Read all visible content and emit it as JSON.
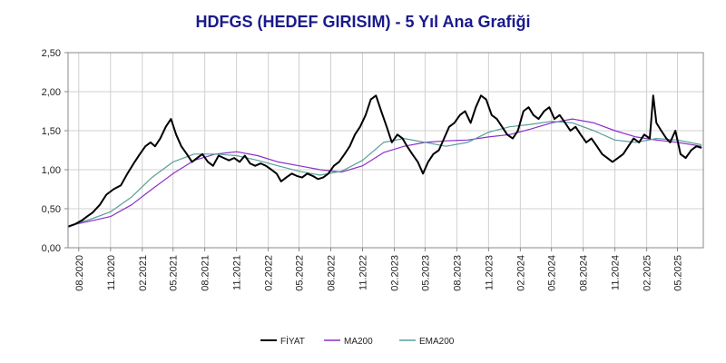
{
  "chart_data": {
    "type": "line",
    "title": "HDFGS (HEDEF GIRISIM) - 5 Yıl Ana Grafiği",
    "title_color": "#1a1a8c",
    "xlabel": "",
    "ylabel": "",
    "ylim": [
      0,
      2.5
    ],
    "xlim": [
      "2020-07-01",
      "2025-07-15"
    ],
    "grid": true,
    "legend_position": "bottom-center",
    "y_ticks": [
      "0,00",
      "0,50",
      "1,00",
      "1,50",
      "2,00",
      "2,50"
    ],
    "x_ticks": [
      "08.2020",
      "11.2020",
      "02.2021",
      "05.2021",
      "08.2021",
      "11.2021",
      "02.2022",
      "05.2022",
      "08.2022",
      "11.2022",
      "02.2023",
      "05.2023",
      "08.2023",
      "11.2023",
      "02.2024",
      "05.2024",
      "08.2024",
      "11.2024",
      "02.2025",
      "05.2025"
    ],
    "series": [
      {
        "name": "FİYAT",
        "color": "#000000",
        "points": [
          [
            "2020-07-01",
            0.27
          ],
          [
            "2020-07-20",
            0.3
          ],
          [
            "2020-08-10",
            0.35
          ],
          [
            "2020-08-25",
            0.4
          ],
          [
            "2020-09-10",
            0.45
          ],
          [
            "2020-10-01",
            0.55
          ],
          [
            "2020-10-20",
            0.68
          ],
          [
            "2020-11-10",
            0.75
          ],
          [
            "2020-12-01",
            0.8
          ],
          [
            "2020-12-20",
            0.95
          ],
          [
            "2021-01-10",
            1.1
          ],
          [
            "2021-01-25",
            1.2
          ],
          [
            "2021-02-10",
            1.3
          ],
          [
            "2021-02-25",
            1.35
          ],
          [
            "2021-03-10",
            1.3
          ],
          [
            "2021-03-25",
            1.4
          ],
          [
            "2021-04-10",
            1.55
          ],
          [
            "2021-04-25",
            1.65
          ],
          [
            "2021-05-10",
            1.45
          ],
          [
            "2021-05-25",
            1.3
          ],
          [
            "2021-06-10",
            1.2
          ],
          [
            "2021-06-25",
            1.1
          ],
          [
            "2021-07-10",
            1.15
          ],
          [
            "2021-07-25",
            1.2
          ],
          [
            "2021-08-10",
            1.1
          ],
          [
            "2021-08-25",
            1.05
          ],
          [
            "2021-09-10",
            1.18
          ],
          [
            "2021-09-25",
            1.15
          ],
          [
            "2021-10-10",
            1.12
          ],
          [
            "2021-10-25",
            1.15
          ],
          [
            "2021-11-10",
            1.1
          ],
          [
            "2021-11-25",
            1.18
          ],
          [
            "2021-12-10",
            1.08
          ],
          [
            "2021-12-25",
            1.05
          ],
          [
            "2022-01-10",
            1.08
          ],
          [
            "2022-01-25",
            1.05
          ],
          [
            "2022-02-10",
            1.0
          ],
          [
            "2022-02-25",
            0.95
          ],
          [
            "2022-03-10",
            0.85
          ],
          [
            "2022-03-25",
            0.9
          ],
          [
            "2022-04-10",
            0.95
          ],
          [
            "2022-04-25",
            0.92
          ],
          [
            "2022-05-10",
            0.9
          ],
          [
            "2022-05-25",
            0.95
          ],
          [
            "2022-06-10",
            0.92
          ],
          [
            "2022-06-25",
            0.88
          ],
          [
            "2022-07-10",
            0.9
          ],
          [
            "2022-07-25",
            0.95
          ],
          [
            "2022-08-10",
            1.05
          ],
          [
            "2022-08-25",
            1.1
          ],
          [
            "2022-09-10",
            1.2
          ],
          [
            "2022-09-25",
            1.3
          ],
          [
            "2022-10-10",
            1.45
          ],
          [
            "2022-10-25",
            1.55
          ],
          [
            "2022-11-10",
            1.7
          ],
          [
            "2022-11-25",
            1.9
          ],
          [
            "2022-12-10",
            1.95
          ],
          [
            "2022-12-25",
            1.75
          ],
          [
            "2023-01-10",
            1.55
          ],
          [
            "2023-01-25",
            1.35
          ],
          [
            "2023-02-10",
            1.45
          ],
          [
            "2023-02-25",
            1.4
          ],
          [
            "2023-03-10",
            1.3
          ],
          [
            "2023-03-25",
            1.2
          ],
          [
            "2023-04-10",
            1.1
          ],
          [
            "2023-04-25",
            0.95
          ],
          [
            "2023-05-10",
            1.1
          ],
          [
            "2023-05-25",
            1.2
          ],
          [
            "2023-06-10",
            1.25
          ],
          [
            "2023-06-25",
            1.4
          ],
          [
            "2023-07-10",
            1.55
          ],
          [
            "2023-07-25",
            1.6
          ],
          [
            "2023-08-10",
            1.7
          ],
          [
            "2023-08-25",
            1.75
          ],
          [
            "2023-09-10",
            1.6
          ],
          [
            "2023-09-25",
            1.8
          ],
          [
            "2023-10-10",
            1.95
          ],
          [
            "2023-10-25",
            1.9
          ],
          [
            "2023-11-10",
            1.7
          ],
          [
            "2023-11-25",
            1.65
          ],
          [
            "2023-12-10",
            1.55
          ],
          [
            "2023-12-25",
            1.45
          ],
          [
            "2024-01-10",
            1.4
          ],
          [
            "2024-01-25",
            1.5
          ],
          [
            "2024-02-10",
            1.75
          ],
          [
            "2024-02-25",
            1.8
          ],
          [
            "2024-03-10",
            1.7
          ],
          [
            "2024-03-25",
            1.65
          ],
          [
            "2024-04-10",
            1.75
          ],
          [
            "2024-04-25",
            1.8
          ],
          [
            "2024-05-10",
            1.65
          ],
          [
            "2024-05-25",
            1.7
          ],
          [
            "2024-06-10",
            1.6
          ],
          [
            "2024-06-25",
            1.5
          ],
          [
            "2024-07-10",
            1.55
          ],
          [
            "2024-07-25",
            1.45
          ],
          [
            "2024-08-10",
            1.35
          ],
          [
            "2024-08-25",
            1.4
          ],
          [
            "2024-09-10",
            1.3
          ],
          [
            "2024-09-25",
            1.2
          ],
          [
            "2024-10-10",
            1.15
          ],
          [
            "2024-10-25",
            1.1
          ],
          [
            "2024-11-10",
            1.15
          ],
          [
            "2024-11-25",
            1.2
          ],
          [
            "2024-12-10",
            1.3
          ],
          [
            "2024-12-25",
            1.4
          ],
          [
            "2025-01-10",
            1.35
          ],
          [
            "2025-01-25",
            1.45
          ],
          [
            "2025-02-10",
            1.4
          ],
          [
            "2025-02-20",
            1.95
          ],
          [
            "2025-03-01",
            1.6
          ],
          [
            "2025-03-15",
            1.5
          ],
          [
            "2025-03-30",
            1.4
          ],
          [
            "2025-04-10",
            1.35
          ],
          [
            "2025-04-25",
            1.5
          ],
          [
            "2025-05-10",
            1.2
          ],
          [
            "2025-05-25",
            1.15
          ],
          [
            "2025-06-10",
            1.25
          ],
          [
            "2025-06-25",
            1.3
          ],
          [
            "2025-07-10",
            1.28
          ]
        ]
      },
      {
        "name": "MA200",
        "color": "#8b2fc9",
        "points": [
          [
            "2020-07-01",
            0.28
          ],
          [
            "2020-09-01",
            0.34
          ],
          [
            "2020-11-01",
            0.4
          ],
          [
            "2021-01-01",
            0.55
          ],
          [
            "2021-03-01",
            0.75
          ],
          [
            "2021-05-01",
            0.95
          ],
          [
            "2021-07-01",
            1.12
          ],
          [
            "2021-09-01",
            1.2
          ],
          [
            "2021-11-01",
            1.23
          ],
          [
            "2022-01-01",
            1.18
          ],
          [
            "2022-03-01",
            1.1
          ],
          [
            "2022-05-01",
            1.05
          ],
          [
            "2022-07-01",
            1.0
          ],
          [
            "2022-09-01",
            0.97
          ],
          [
            "2022-11-01",
            1.05
          ],
          [
            "2023-01-01",
            1.22
          ],
          [
            "2023-03-01",
            1.3
          ],
          [
            "2023-05-01",
            1.35
          ],
          [
            "2023-07-01",
            1.37
          ],
          [
            "2023-09-01",
            1.38
          ],
          [
            "2023-11-01",
            1.42
          ],
          [
            "2024-01-01",
            1.45
          ],
          [
            "2024-03-01",
            1.52
          ],
          [
            "2024-05-01",
            1.6
          ],
          [
            "2024-07-01",
            1.65
          ],
          [
            "2024-09-01",
            1.6
          ],
          [
            "2024-11-01",
            1.5
          ],
          [
            "2025-01-01",
            1.42
          ],
          [
            "2025-03-01",
            1.38
          ],
          [
            "2025-05-01",
            1.35
          ],
          [
            "2025-07-10",
            1.3
          ]
        ]
      },
      {
        "name": "EMA200",
        "color": "#5a9e9a",
        "points": [
          [
            "2020-07-01",
            0.28
          ],
          [
            "2020-09-01",
            0.36
          ],
          [
            "2020-11-01",
            0.46
          ],
          [
            "2021-01-01",
            0.65
          ],
          [
            "2021-03-01",
            0.9
          ],
          [
            "2021-05-01",
            1.1
          ],
          [
            "2021-07-01",
            1.2
          ],
          [
            "2021-09-01",
            1.2
          ],
          [
            "2021-11-01",
            1.18
          ],
          [
            "2022-01-01",
            1.12
          ],
          [
            "2022-03-01",
            1.05
          ],
          [
            "2022-05-01",
            0.98
          ],
          [
            "2022-07-01",
            0.93
          ],
          [
            "2022-09-01",
            0.98
          ],
          [
            "2022-11-01",
            1.12
          ],
          [
            "2023-01-01",
            1.35
          ],
          [
            "2023-03-01",
            1.4
          ],
          [
            "2023-05-01",
            1.35
          ],
          [
            "2023-07-01",
            1.3
          ],
          [
            "2023-09-01",
            1.35
          ],
          [
            "2023-11-01",
            1.48
          ],
          [
            "2024-01-01",
            1.55
          ],
          [
            "2024-03-01",
            1.58
          ],
          [
            "2024-05-01",
            1.62
          ],
          [
            "2024-07-01",
            1.6
          ],
          [
            "2024-09-01",
            1.5
          ],
          [
            "2024-11-01",
            1.38
          ],
          [
            "2025-01-01",
            1.35
          ],
          [
            "2025-03-01",
            1.4
          ],
          [
            "2025-05-01",
            1.38
          ],
          [
            "2025-07-10",
            1.32
          ]
        ]
      }
    ]
  }
}
